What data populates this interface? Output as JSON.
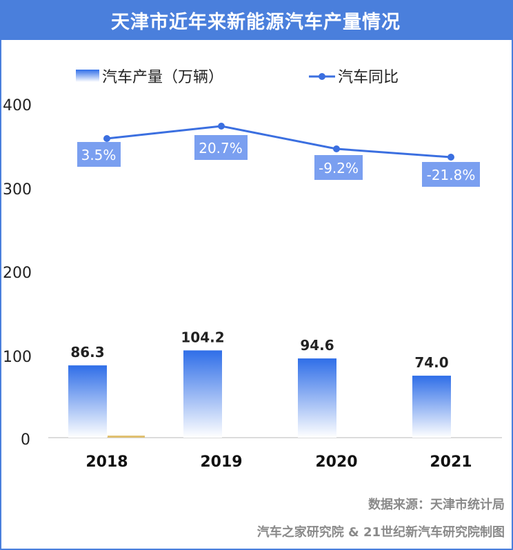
{
  "title": "天津市近年来新能源汽车产量情况",
  "chart_data": {
    "type": "bar",
    "categories": [
      "2018",
      "2019",
      "2020",
      "2021"
    ],
    "series": [
      {
        "name": "汽车产量（万辆）",
        "type": "bar",
        "values": [
          86.3,
          104.2,
          94.6,
          74.0
        ]
      },
      {
        "name": "汽车同比",
        "type": "line",
        "values": [
          3.5,
          20.7,
          -9.2,
          -21.8
        ],
        "labels": [
          "3.5%",
          "20.7%",
          "-9.2%",
          "-21.8%"
        ]
      }
    ],
    "bar_labels": [
      "86.3",
      "104.2",
      "94.6",
      "74.0"
    ],
    "y_ticks": [
      "0",
      "100",
      "200",
      "300",
      "400"
    ],
    "ylim": [
      0,
      400
    ],
    "legend_position": "top",
    "colors": {
      "bar_top": "#2f6ee8",
      "bar_bottom": "#ffffff",
      "line": "#3b6fe0",
      "label_box": "#7a9ff0",
      "frame": "#4a7fdc"
    }
  },
  "footer": {
    "source": "数据来源：天津市统计局",
    "credit": "汽车之家研究院 & 21世纪新汽车研究院制图"
  }
}
